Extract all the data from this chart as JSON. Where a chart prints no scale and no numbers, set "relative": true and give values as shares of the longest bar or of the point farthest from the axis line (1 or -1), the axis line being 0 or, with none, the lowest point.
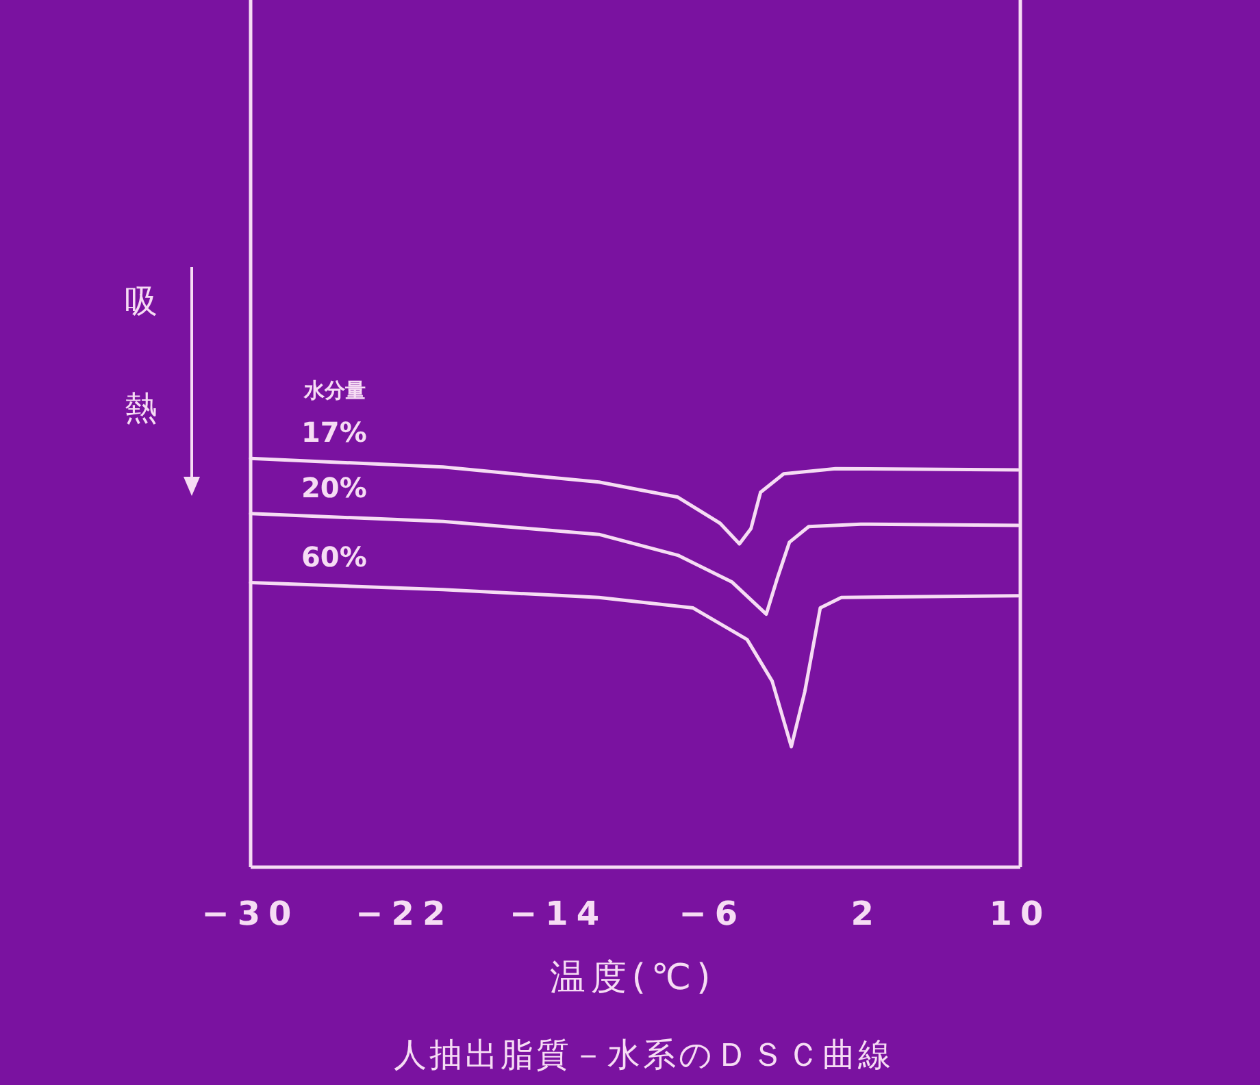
{
  "chart_data": {
    "type": "line",
    "title": "人抽出脂質－水系のＤＳＣ曲線",
    "xlabel": "温度(℃)",
    "ylabel": "吸熱",
    "annotations": [
      "水分量"
    ],
    "xlim": [
      -30,
      10
    ],
    "xticks": [
      -30,
      -22,
      -14,
      -6,
      2,
      10
    ],
    "relative": true,
    "grid": false,
    "line_style": "solid",
    "series": [
      {
        "name": "17%",
        "color": "#f6dcf4",
        "x": [
          -30,
          -20.0,
          -11.9,
          -7.8,
          -5.6,
          -4.6,
          -4.0,
          -3.5,
          -2.3,
          0.4,
          9.9
        ],
        "values": [
          1.0,
          0.979,
          0.942,
          0.905,
          0.841,
          0.791,
          0.828,
          0.917,
          0.962,
          0.975,
          0.972
        ]
      },
      {
        "name": "20%",
        "color": "#f6dcf4",
        "x": [
          -30,
          -20.0,
          -11.9,
          -7.8,
          -5.0,
          -3.2,
          -2.6,
          -2.0,
          -1.0,
          1.7,
          9.9
        ],
        "values": [
          0.865,
          0.846,
          0.814,
          0.763,
          0.698,
          0.619,
          0.711,
          0.795,
          0.833,
          0.839,
          0.836
        ]
      },
      {
        "name": "60%",
        "color": "#f6dcf4",
        "x": [
          -30,
          -20.0,
          -11.9,
          -7.0,
          -4.2,
          -2.9,
          -1.9,
          -1.2,
          -0.4,
          0.7,
          9.9
        ],
        "values": [
          0.696,
          0.679,
          0.66,
          0.634,
          0.557,
          0.455,
          0.295,
          0.429,
          0.634,
          0.66,
          0.664
        ]
      }
    ]
  }
}
